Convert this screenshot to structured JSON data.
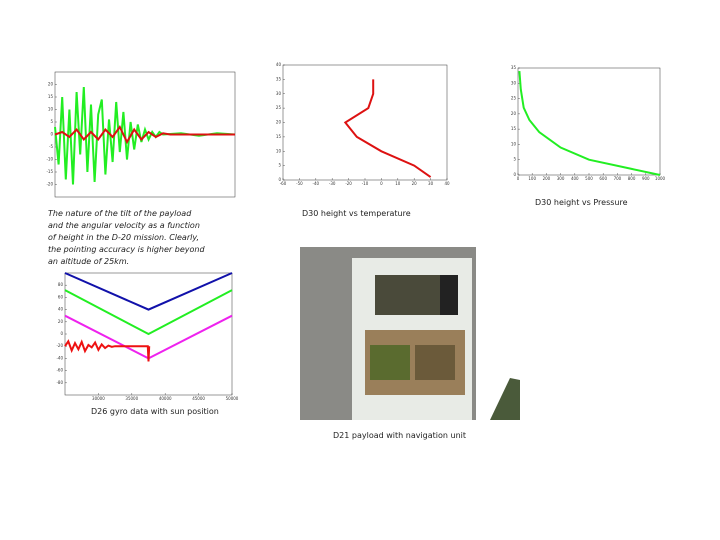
{
  "slide": {
    "captions": {
      "tilt": "The nature of the tilt of the payload and the angular velocity as a function of height in the D-20 mission. Clearly, the pointing accuracy is higher beyond an altitude of 25km.",
      "temperature": "D30 height vs temperature",
      "pressure": "D30 height vs Pressure",
      "gyro": "D26 gyro data with sun position",
      "payload": "D21 payload with navigation unit"
    },
    "charts": [
      {
        "type": "line",
        "xlim": [
          0,
          100
        ],
        "ylim": [
          -25,
          25
        ],
        "yticks": [
          20,
          15,
          10,
          5,
          0,
          -5,
          -10,
          -15,
          -20
        ],
        "series": [
          {
            "color": "#22ee22",
            "x": [
              0,
              2,
              4,
              6,
              8,
              10,
              12,
              14,
              16,
              18,
              20,
              22,
              24,
              26,
              28,
              30,
              32,
              34,
              36,
              38,
              40,
              42,
              44,
              46,
              48,
              50,
              52,
              54,
              56,
              58,
              60,
              70,
              80,
              90,
              100
            ],
            "values": [
              3,
              -12,
              15,
              -18,
              10,
              -20,
              17,
              -8,
              19,
              -15,
              12,
              -19,
              8,
              14,
              -16,
              6,
              -11,
              13,
              -7,
              9,
              -10,
              5,
              -6,
              4,
              -3,
              2,
              -2,
              1,
              -1,
              1,
              0,
              0.5,
              -0.5,
              0.5,
              0
            ]
          },
          {
            "color": "#dd1111",
            "x": [
              0,
              4,
              8,
              12,
              16,
              20,
              24,
              28,
              32,
              36,
              40,
              44,
              48,
              52,
              56,
              60,
              64,
              68,
              72,
              76,
              80,
              84,
              88,
              92,
              96,
              100
            ],
            "values": [
              0,
              1,
              -1,
              2,
              -2,
              1,
              -2,
              2,
              -1,
              3,
              -3,
              2,
              -2,
              1,
              -1,
              0.5,
              0,
              0,
              0,
              0,
              0,
              0,
              0,
              0,
              0,
              0
            ]
          }
        ]
      },
      {
        "type": "line",
        "xlim": [
          -60,
          40
        ],
        "xticks": [
          -60,
          -50,
          -40,
          -30,
          -20,
          -10,
          0,
          10,
          20,
          30,
          40
        ],
        "ylim": [
          0,
          40
        ],
        "yticks": [
          0,
          5,
          10,
          15,
          20,
          25,
          30,
          35,
          40
        ],
        "series": [
          {
            "color": "#dd1111",
            "x": [
              -5,
              -5,
              -8,
              -22,
              -15,
              0,
              20,
              30
            ],
            "values": [
              35,
              30,
              25,
              20,
              15,
              10,
              5,
              1
            ]
          }
        ]
      },
      {
        "type": "line",
        "xlim": [
          0,
          1000
        ],
        "xticks": [
          0,
          100,
          200,
          300,
          400,
          500,
          600,
          700,
          800,
          900,
          1000
        ],
        "ylim": [
          0,
          35
        ],
        "yticks": [
          0,
          5,
          10,
          15,
          20,
          25,
          30,
          35
        ],
        "series": [
          {
            "color": "#22ee22",
            "x": [
              10,
              20,
              40,
              80,
              150,
              300,
              500,
              800,
              1000
            ],
            "values": [
              34,
              28,
              22,
              18,
              14,
              9,
              5,
              2,
              0
            ]
          }
        ]
      },
      {
        "type": "line",
        "xlim": [
          25000,
          50000
        ],
        "xticks": [
          30000,
          35000,
          40000,
          45000,
          50000
        ],
        "ylim": [
          -100,
          100
        ],
        "yticks": [
          80,
          60,
          40,
          20,
          0,
          -20,
          -40,
          -60,
          -80
        ],
        "series": [
          {
            "color": "#1111aa",
            "x": [
              25000,
              37500,
              50000
            ],
            "values": [
              100,
              40,
              100
            ]
          },
          {
            "color": "#22ee22",
            "x": [
              25000,
              37500,
              50000
            ],
            "values": [
              72,
              0,
              72
            ]
          },
          {
            "color": "#ee22ee",
            "x": [
              25000,
              37500,
              50000
            ],
            "values": [
              30,
              -40,
              30
            ]
          },
          {
            "color": "#ee1111",
            "x": [
              25000,
              25500,
              26000,
              26500,
              27000,
              27500,
              28000,
              28500,
              29000,
              29500,
              30000,
              30500,
              31000,
              31500,
              32000,
              32500,
              33000,
              37400,
              37500,
              37600
            ],
            "values": [
              -20,
              -12,
              -27,
              -15,
              -25,
              -13,
              -28,
              -18,
              -22,
              -14,
              -26,
              -17,
              -23,
              -19,
              -21,
              -20,
              -20,
              -20,
              -45,
              -20
            ]
          }
        ]
      }
    ]
  }
}
